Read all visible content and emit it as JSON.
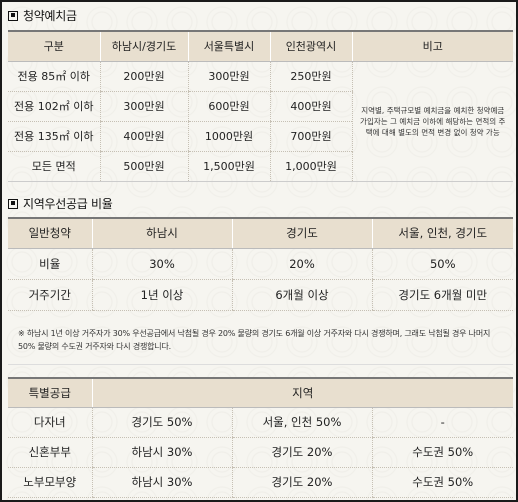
{
  "section1": {
    "title": "청약예치금",
    "headers": [
      "구분",
      "하남시/경기도",
      "서울특별시",
      "인천광역시",
      "비고"
    ],
    "rows": [
      [
        "전용 85㎡ 이하",
        "200만원",
        "300만원",
        "250만원"
      ],
      [
        "전용 102㎡ 이하",
        "300만원",
        "600만원",
        "400만원"
      ],
      [
        "전용 135㎡ 이하",
        "400만원",
        "1000만원",
        "700만원"
      ],
      [
        "모든 면적",
        "500만원",
        "1,500만원",
        "1,000만원"
      ]
    ],
    "note": "지역별, 주택규모별 예치금을 예치한 청약예금 가입자는 그 예치금 이하에 해당하는 면적의 주택에 대해 별도의 면적 변경 없이 청약 가능"
  },
  "section2": {
    "title": "지역우선공급 비율",
    "headers": [
      "일반청약",
      "하남시",
      "경기도",
      "서울, 인천, 경기도"
    ],
    "rows": [
      [
        "비율",
        "30%",
        "20%",
        "50%"
      ],
      [
        "거주기간",
        "1년 이상",
        "6개월 이상",
        "경기도 6개월 미만"
      ]
    ],
    "footnote": "※ 하남시 1년 이상 거주자가 30% 우선공급에서 낙첨될 경우 20% 물량의 경기도 6개월 이상 거주자와 다시 경쟁하며, 그래도 낙첨될 경우 나머지 50% 물량의 수도권 거주자와 다시 경쟁합니다."
  },
  "section3": {
    "headers": [
      "특별공급",
      "지역"
    ],
    "rows": [
      [
        "다자녀",
        "경기도 50%",
        "서울, 인천 50%",
        "-"
      ],
      [
        "신혼부부",
        "하남시 30%",
        "경기도 20%",
        "수도권 50%"
      ],
      [
        "노부모부양",
        "하남시 30%",
        "경기도 20%",
        "수도권 50%"
      ]
    ]
  }
}
